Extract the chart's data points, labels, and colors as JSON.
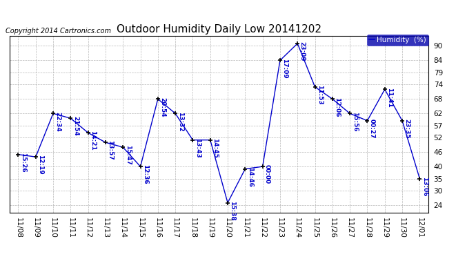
{
  "title": "Outdoor Humidity Daily Low 20141202",
  "copyright": "Copyright 2014 Cartronics.com",
  "legend_label": "Humidity  (%)",
  "x_labels": [
    "11/08",
    "11/09",
    "11/10",
    "11/11",
    "11/12",
    "11/13",
    "11/14",
    "11/15",
    "11/16",
    "11/17",
    "11/18",
    "11/19",
    "11/20",
    "11/21",
    "11/22",
    "11/23",
    "11/24",
    "11/25",
    "11/26",
    "11/27",
    "11/28",
    "11/29",
    "11/30",
    "12/01"
  ],
  "y_values": [
    45,
    44,
    62,
    60,
    54,
    50,
    48,
    40,
    68,
    62,
    51,
    51,
    25,
    39,
    40,
    84,
    91,
    73,
    68,
    62,
    59,
    72,
    59,
    35
  ],
  "point_labels": [
    "15:26",
    "12:19",
    "22:34",
    "21:54",
    "14:21",
    "13:57",
    "15:47",
    "12:36",
    "20:54",
    "13:32",
    "13:43",
    "14:45",
    "15:38",
    "14:46",
    "00:00",
    "17:09",
    "23:09",
    "11:53",
    "12:06",
    "15:56",
    "00:27",
    "11:41",
    "23:35",
    "13:06"
  ],
  "ylim": [
    21,
    94
  ],
  "yticks": [
    24,
    30,
    35,
    40,
    46,
    52,
    57,
    62,
    68,
    74,
    79,
    84,
    90
  ],
  "line_color": "#0000cc",
  "marker_color": "#000000",
  "label_color": "#0000cc",
  "bg_color": "#ffffff",
  "grid_color": "#aaaaaa",
  "title_fontsize": 11,
  "label_fontsize": 6.5,
  "tick_fontsize": 7.5,
  "copyright_fontsize": 7
}
